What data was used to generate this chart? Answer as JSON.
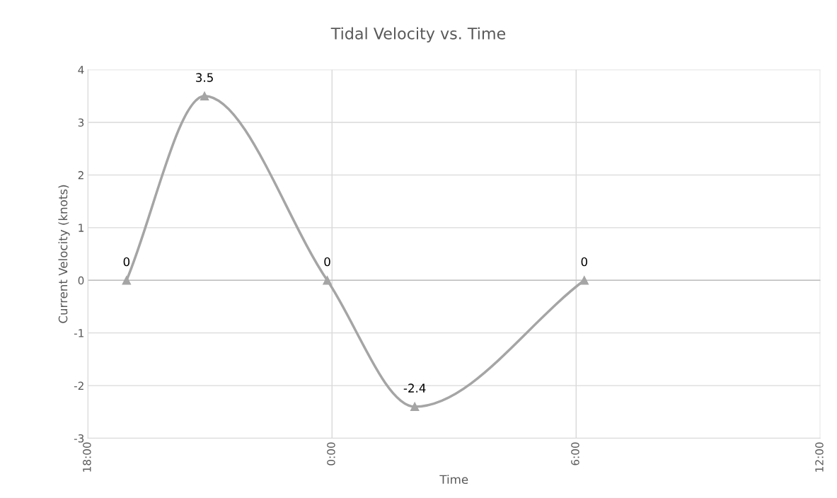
{
  "chart_data": {
    "type": "line",
    "title": "Tidal Velocity vs. Time",
    "xlabel": "Time",
    "ylabel": "Current Velocity (knots)",
    "x": [
      "2000-01-01T18:57",
      "2000-01-01T20:52",
      "2000-01-01T23:53",
      "2000-01-02T02:02",
      "2000-01-02T06:12"
    ],
    "series": [
      {
        "color": "#a5a5a5",
        "values": [
          0,
          3.5,
          0,
          -2.4,
          0
        ]
      }
    ],
    "xlim": [
      "2000-01-01T18:00",
      "2000-01-02T12:00"
    ],
    "xticks": [
      {
        "value": "2000-01-01T18:00",
        "label": "18:00"
      },
      {
        "value": "2000-01-02T00:00",
        "label": "0:00"
      },
      {
        "value": "2000-01-02T06:00",
        "label": "6:00"
      },
      {
        "value": "2000-01-02T12:00",
        "label": "12:00"
      }
    ],
    "ylim": [
      -3,
      4
    ],
    "yticks": [
      -3,
      -2,
      -1,
      0,
      1,
      2,
      3,
      4
    ],
    "grid": true,
    "marker": "triangle",
    "line_style": "solid",
    "data_labels": true
  }
}
